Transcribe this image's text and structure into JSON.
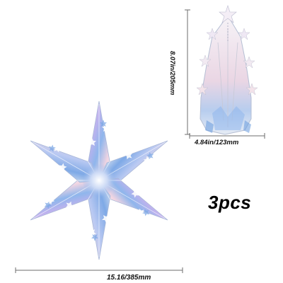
{
  "product": {
    "quantity_label": "3pcs",
    "dimensions": {
      "side_height": "8.07in/205mm",
      "side_width": "4.84in/123mm",
      "star_width": "15.16/385mm"
    },
    "colors": {
      "background": "#ffffff",
      "iridescent_blue": "#8fb6ec",
      "iridescent_violet": "#c3b2ee",
      "iridescent_pink": "#f1d5e2",
      "iridescent_silver": "#dfe6f2",
      "dimension_line": "#6d6d6d",
      "text": "#111111"
    },
    "images": {
      "hanging_star_front": "hexagram-paper-star-icon",
      "hanging_star_side": "folded-star-lantern-icon"
    }
  }
}
